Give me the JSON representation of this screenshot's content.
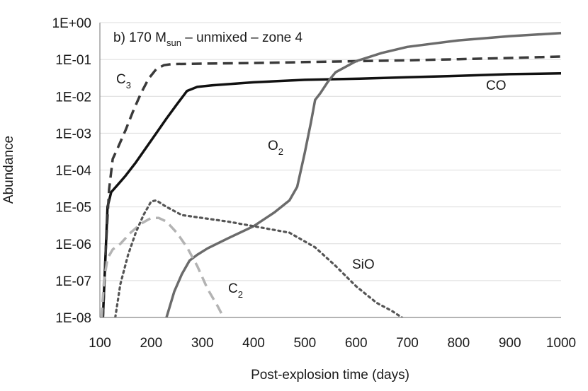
{
  "chart_data": {
    "type": "line",
    "title": "b) 170 M",
    "title_subscript": "sun",
    "title_suffix": " – unmixed – zone 4",
    "xlabel": "Post-explosion time (days)",
    "ylabel": "Abundance",
    "xlim": [
      100,
      1000
    ],
    "ylim_log10": [
      -8,
      0
    ],
    "yscale": "log",
    "grid": "horizontal",
    "x_ticks": [
      100,
      200,
      300,
      400,
      500,
      600,
      700,
      800,
      900,
      1000
    ],
    "x_tick_labels": [
      "100",
      "200",
      "300",
      "400",
      "500",
      "600",
      "700",
      "800",
      "900",
      "1000"
    ],
    "y_tick_labels": [
      "1E-08",
      "1E-07",
      "1E-06",
      "1E-05",
      "1E-04",
      "1E-03",
      "1E-02",
      "1E-01",
      "1E+00"
    ],
    "series": [
      {
        "name": "CO",
        "label_main": "CO",
        "label_sub": "",
        "style": "solid",
        "color": "#111111",
        "width": 3.5,
        "x": [
          106,
          115,
          122,
          135,
          150,
          170,
          190,
          210,
          230,
          250,
          270,
          290,
          320,
          400,
          500,
          600,
          700,
          800,
          900,
          1000
        ],
        "y": [
          1e-08,
          1e-05,
          2.5e-05,
          4e-05,
          7e-05,
          0.00016,
          0.0004,
          0.001,
          0.0025,
          0.006,
          0.014,
          0.018,
          0.02,
          0.024,
          0.028,
          0.03,
          0.033,
          0.036,
          0.04,
          0.042
        ]
      },
      {
        "name": "C3",
        "label_main": "C",
        "label_sub": "3",
        "style": "dashed",
        "color": "#3a3a3a",
        "width": 3.5,
        "x": [
          106,
          112,
          118,
          125,
          135,
          150,
          165,
          180,
          195,
          210,
          225,
          240,
          300,
          400,
          500,
          600,
          700,
          800,
          900,
          1000
        ],
        "y": [
          1e-08,
          1e-06,
          3e-05,
          0.0002,
          0.0004,
          0.0012,
          0.004,
          0.012,
          0.03,
          0.055,
          0.07,
          0.075,
          0.077,
          0.08,
          0.085,
          0.09,
          0.095,
          0.102,
          0.11,
          0.12
        ]
      },
      {
        "name": "O2",
        "label_main": "O",
        "label_sub": "2",
        "style": "solid",
        "color": "#6b6b6b",
        "width": 3.5,
        "x": [
          230,
          245,
          260,
          275,
          290,
          310,
          350,
          400,
          440,
          470,
          485,
          500,
          512,
          520,
          530,
          545,
          560,
          600,
          650,
          700,
          800,
          900,
          1000
        ],
        "y": [
          1e-08,
          5e-08,
          1.5e-07,
          3.5e-07,
          5e-07,
          7.5e-07,
          1.4e-06,
          3e-06,
          7e-06,
          1.5e-05,
          3.5e-05,
          0.0003,
          0.002,
          0.008,
          0.012,
          0.025,
          0.045,
          0.09,
          0.15,
          0.22,
          0.33,
          0.43,
          0.52
        ]
      },
      {
        "name": "C2",
        "label_main": "C",
        "label_sub": "2",
        "style": "dashed",
        "color": "#b3b3b3",
        "width": 3.5,
        "x": [
          103,
          108,
          115,
          125,
          140,
          160,
          180,
          200,
          215,
          230,
          250,
          270,
          290,
          310,
          330,
          345
        ],
        "y": [
          1e-08,
          1e-07,
          4e-07,
          7e-07,
          1e-06,
          2e-06,
          3.5e-06,
          5e-06,
          5e-06,
          4e-06,
          2e-06,
          8e-07,
          2.5e-07,
          6e-08,
          2e-08,
          8e-09
        ]
      },
      {
        "name": "SiO",
        "label_main": "SiO",
        "label_sub": "",
        "style": "dotted",
        "color": "#555555",
        "width": 3.2,
        "x": [
          130,
          140,
          155,
          170,
          185,
          200,
          210,
          230,
          260,
          300,
          350,
          400,
          470,
          520,
          560,
          600,
          640,
          670,
          700
        ],
        "y": [
          1e-08,
          8e-08,
          5e-07,
          2e-06,
          6e-06,
          1.4e-05,
          1.5e-05,
          1e-05,
          6e-06,
          5e-06,
          4e-06,
          3e-06,
          2e-06,
          8e-07,
          2.5e-07,
          7e-08,
          2.5e-08,
          1.5e-08,
          8e-09
        ]
      }
    ]
  }
}
